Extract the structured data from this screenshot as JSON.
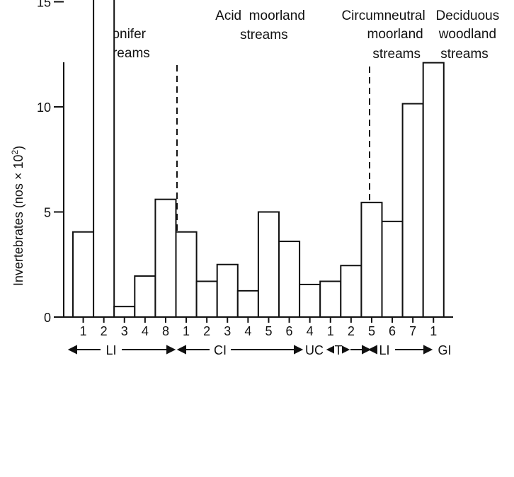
{
  "chart_data": {
    "type": "bar",
    "ylabel_prefix": "Invertebrates (nos ",
    "ylabel_x": "×",
    "ylabel_base": " 10",
    "ylabel_exp": "2",
    "ylabel_suffix": ")",
    "ylim": [
      0,
      17.5
    ],
    "yticks": [
      "0",
      "5",
      "10",
      "15"
    ],
    "categories": [
      "1",
      "2",
      "3",
      "4",
      "8",
      "1",
      "2",
      "3",
      "4",
      "5",
      "6",
      "4",
      "1",
      "2",
      "5",
      "6",
      "7",
      "1"
    ],
    "values": [
      4.05,
      17.1,
      0.5,
      1.95,
      5.6,
      4.05,
      1.7,
      2.5,
      1.25,
      5.0,
      3.6,
      1.55,
      1.7,
      2.45,
      5.45,
      4.55,
      10.15,
      12.1
    ],
    "groups": [
      {
        "lines": [
          "Conifer",
          "streams"
        ]
      },
      {
        "lines": [
          "Acid  moorland",
          "streams"
        ]
      },
      {
        "lines": [
          "Circumneutral",
          "moorland",
          "streams"
        ]
      },
      {
        "lines": [
          "Deciduous",
          "woodland",
          "streams"
        ]
      }
    ],
    "zones": [
      "LI",
      "CI",
      "UC",
      "T",
      "LI",
      "GI"
    ]
  }
}
